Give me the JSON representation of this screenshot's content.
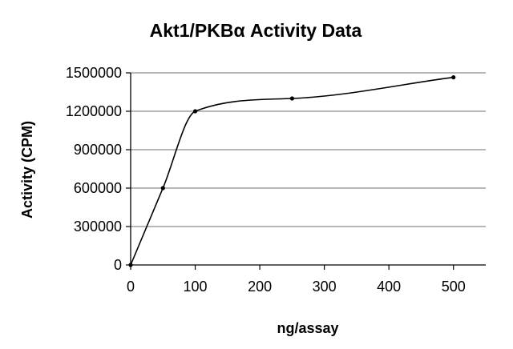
{
  "chart_data": {
    "type": "line",
    "title": "Akt1/PKBα Activity Data",
    "xlabel": "ng/assay",
    "ylabel": "Activity (CPM)",
    "x": [
      0,
      50,
      100,
      250,
      500
    ],
    "series": [
      {
        "values": [
          0,
          600000,
          1200000,
          1300000,
          1465000
        ]
      }
    ],
    "xlim": [
      0,
      550
    ],
    "ylim": [
      0,
      1500000
    ],
    "x_ticks": [
      0,
      100,
      200,
      300,
      400,
      500
    ],
    "x_tick_labels": [
      "0",
      "100",
      "200",
      "300",
      "400",
      "500"
    ],
    "y_ticks": [
      0,
      300000,
      600000,
      900000,
      1200000,
      1500000
    ],
    "y_tick_labels": [
      "0",
      "300000",
      "600000",
      "900000",
      "1200000",
      "1500000"
    ],
    "grid": true,
    "smoothed": true,
    "line_color": "#000000",
    "grid_color": "#8c8c8c",
    "legend": "none"
  }
}
